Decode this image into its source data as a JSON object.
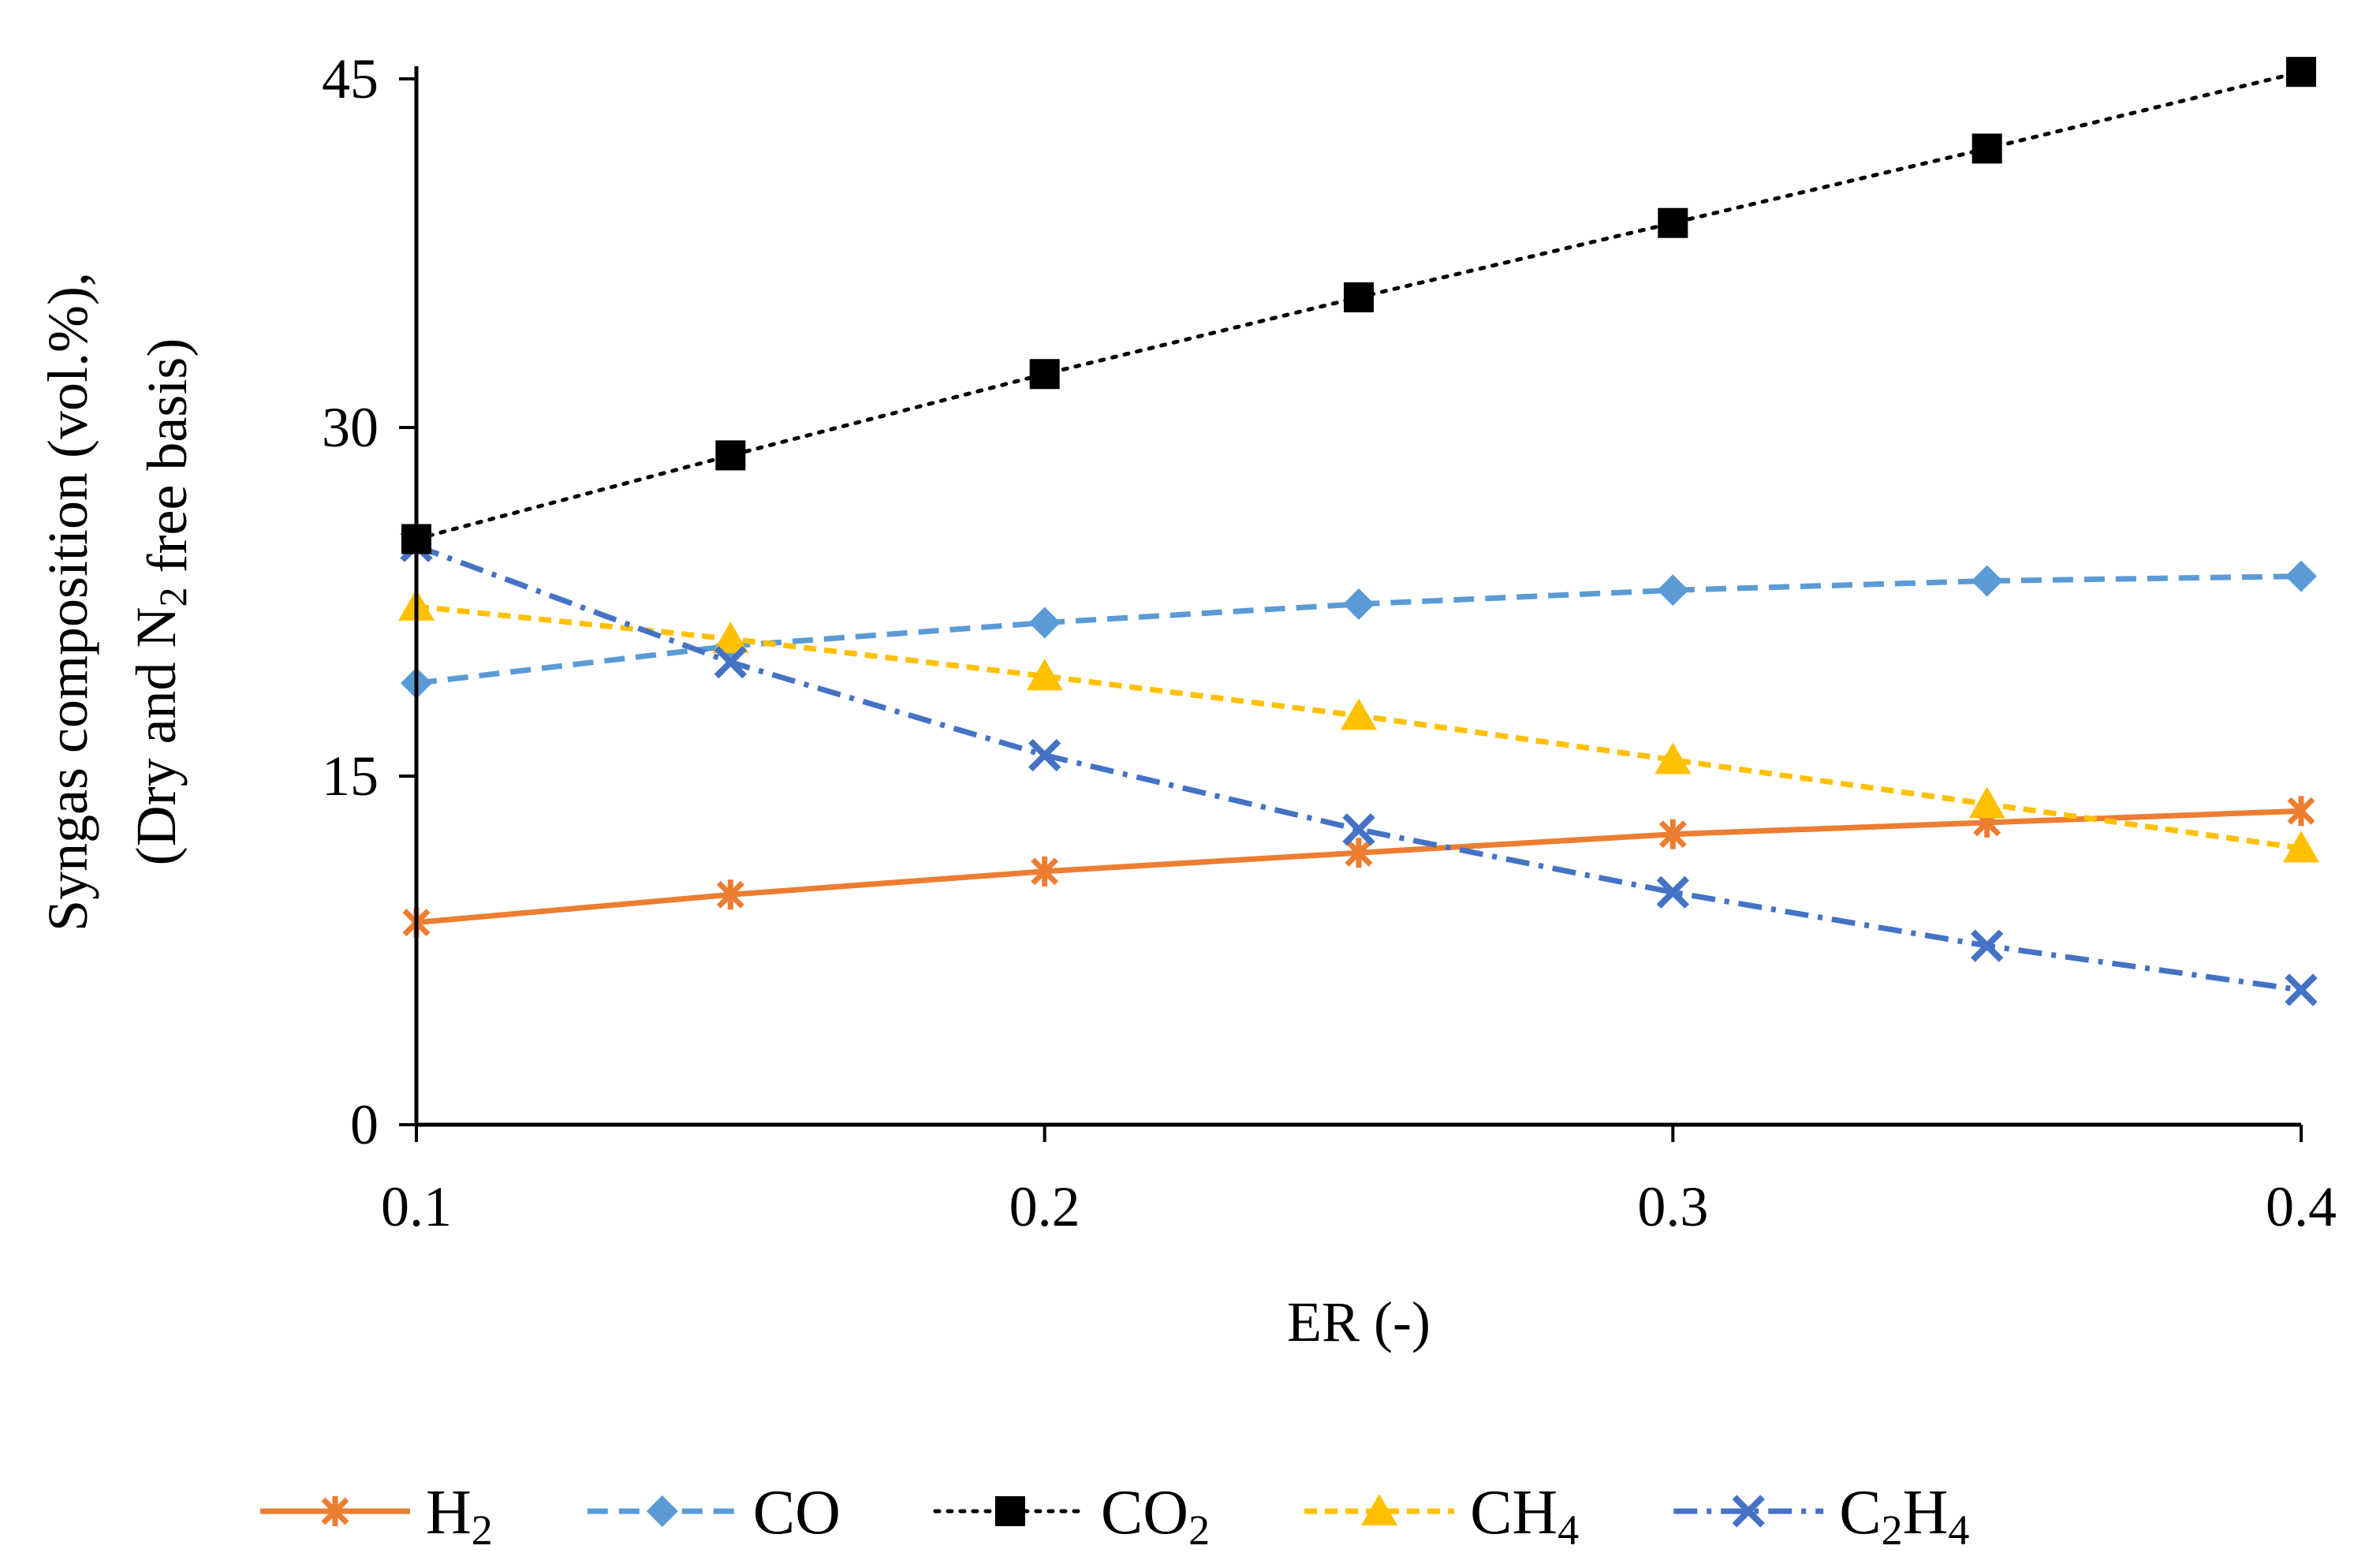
{
  "chart_data": {
    "type": "line",
    "title": "",
    "xlabel": "ER (-)",
    "ylabel_line1": "Syngas composition (vol.%),",
    "ylabel_line2": "(Dry and N2 free basis)",
    "x": [
      0.1,
      0.15,
      0.2,
      0.25,
      0.3,
      0.35,
      0.4
    ],
    "xlim": [
      0.1,
      0.4
    ],
    "ylim": [
      0,
      45
    ],
    "xticks": [
      0.1,
      0.2,
      0.3,
      0.4
    ],
    "xtick_labels": [
      "0.1",
      "0.2",
      "0.3",
      "0.4"
    ],
    "yticks": [
      0,
      15,
      30,
      45
    ],
    "ytick_labels": [
      "0",
      "15",
      "30",
      "45"
    ],
    "grid": false,
    "legend_position": "bottom",
    "series": [
      {
        "name": "H2",
        "label_main": "H",
        "label_sub": "2",
        "values": [
          8.7,
          9.9,
          10.9,
          11.7,
          12.5,
          13.0,
          13.5
        ],
        "color": "#ED7D31",
        "line_style": "solid",
        "marker": "asterisk"
      },
      {
        "name": "CO",
        "label_main": "CO",
        "label_sub": "",
        "values": [
          19.0,
          20.6,
          21.6,
          22.4,
          23.0,
          23.4,
          23.6
        ],
        "color": "#5B9BD5",
        "line_style": "dashed",
        "marker": "diamond"
      },
      {
        "name": "CO2",
        "label_main": "CO",
        "label_sub": "2",
        "values": [
          25.2,
          28.8,
          32.3,
          35.6,
          38.8,
          42.0,
          45.3
        ],
        "color": "#000000",
        "line_style": "dotted",
        "marker": "square"
      },
      {
        "name": "CH4",
        "label_main": "CH",
        "label_sub": "4",
        "values": [
          22.3,
          20.9,
          19.3,
          17.6,
          15.7,
          13.8,
          11.9
        ],
        "color": "#FFC000",
        "line_style": "short-dashed",
        "marker": "triangle"
      },
      {
        "name": "C2H4",
        "label_main": "C2H",
        "label_sub": "4",
        "values": [
          24.9,
          19.9,
          15.9,
          12.7,
          10.0,
          7.7,
          5.8
        ],
        "color": "#4472C4",
        "line_style": "dash-dot",
        "marker": "x"
      }
    ]
  }
}
